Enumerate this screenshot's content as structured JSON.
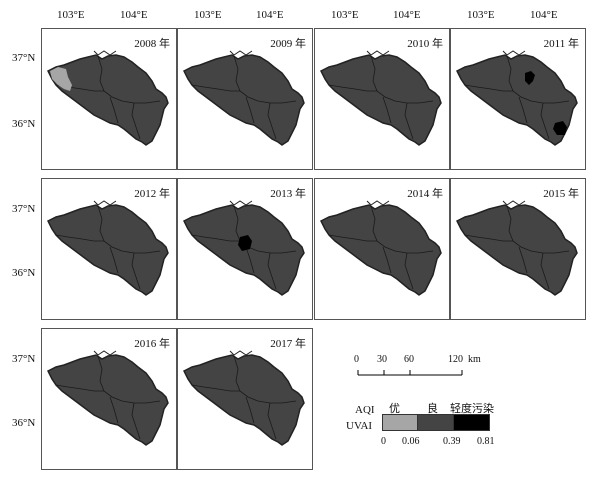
{
  "axes": {
    "lon_labels": [
      "103°E",
      "104°E"
    ],
    "lat_labels": [
      "37°N",
      "36°N"
    ]
  },
  "panels": [
    {
      "year": "2008 年",
      "feature": "light-west"
    },
    {
      "year": "2009 年",
      "feature": "none"
    },
    {
      "year": "2010 年",
      "feature": "none"
    },
    {
      "year": "2011 年",
      "feature": "dark-spots"
    },
    {
      "year": "2012 年",
      "feature": "none"
    },
    {
      "year": "2013 年",
      "feature": "dark-center"
    },
    {
      "year": "2014 年",
      "feature": "none"
    },
    {
      "year": "2015 年",
      "feature": "none"
    },
    {
      "year": "2016 年",
      "feature": "none"
    },
    {
      "year": "2017 年",
      "feature": "none"
    }
  ],
  "scale": {
    "ticks": [
      "0",
      "30",
      "60",
      "120"
    ],
    "unit": "km"
  },
  "legend": {
    "aqi_label": "AQI",
    "uvai_label": "UVAI",
    "categories": [
      "优",
      "良",
      "轻度污染"
    ],
    "breaks": [
      "0",
      "0.06",
      "0.39",
      "0.81"
    ],
    "colors": {
      "good": "#a6a6a6",
      "moderate": "#444444",
      "light": "#000000"
    }
  },
  "colors": {
    "region_fill": "#444444",
    "boundary": "#222222",
    "light_patch": "#a6a6a6",
    "dark_patch": "#000000"
  }
}
